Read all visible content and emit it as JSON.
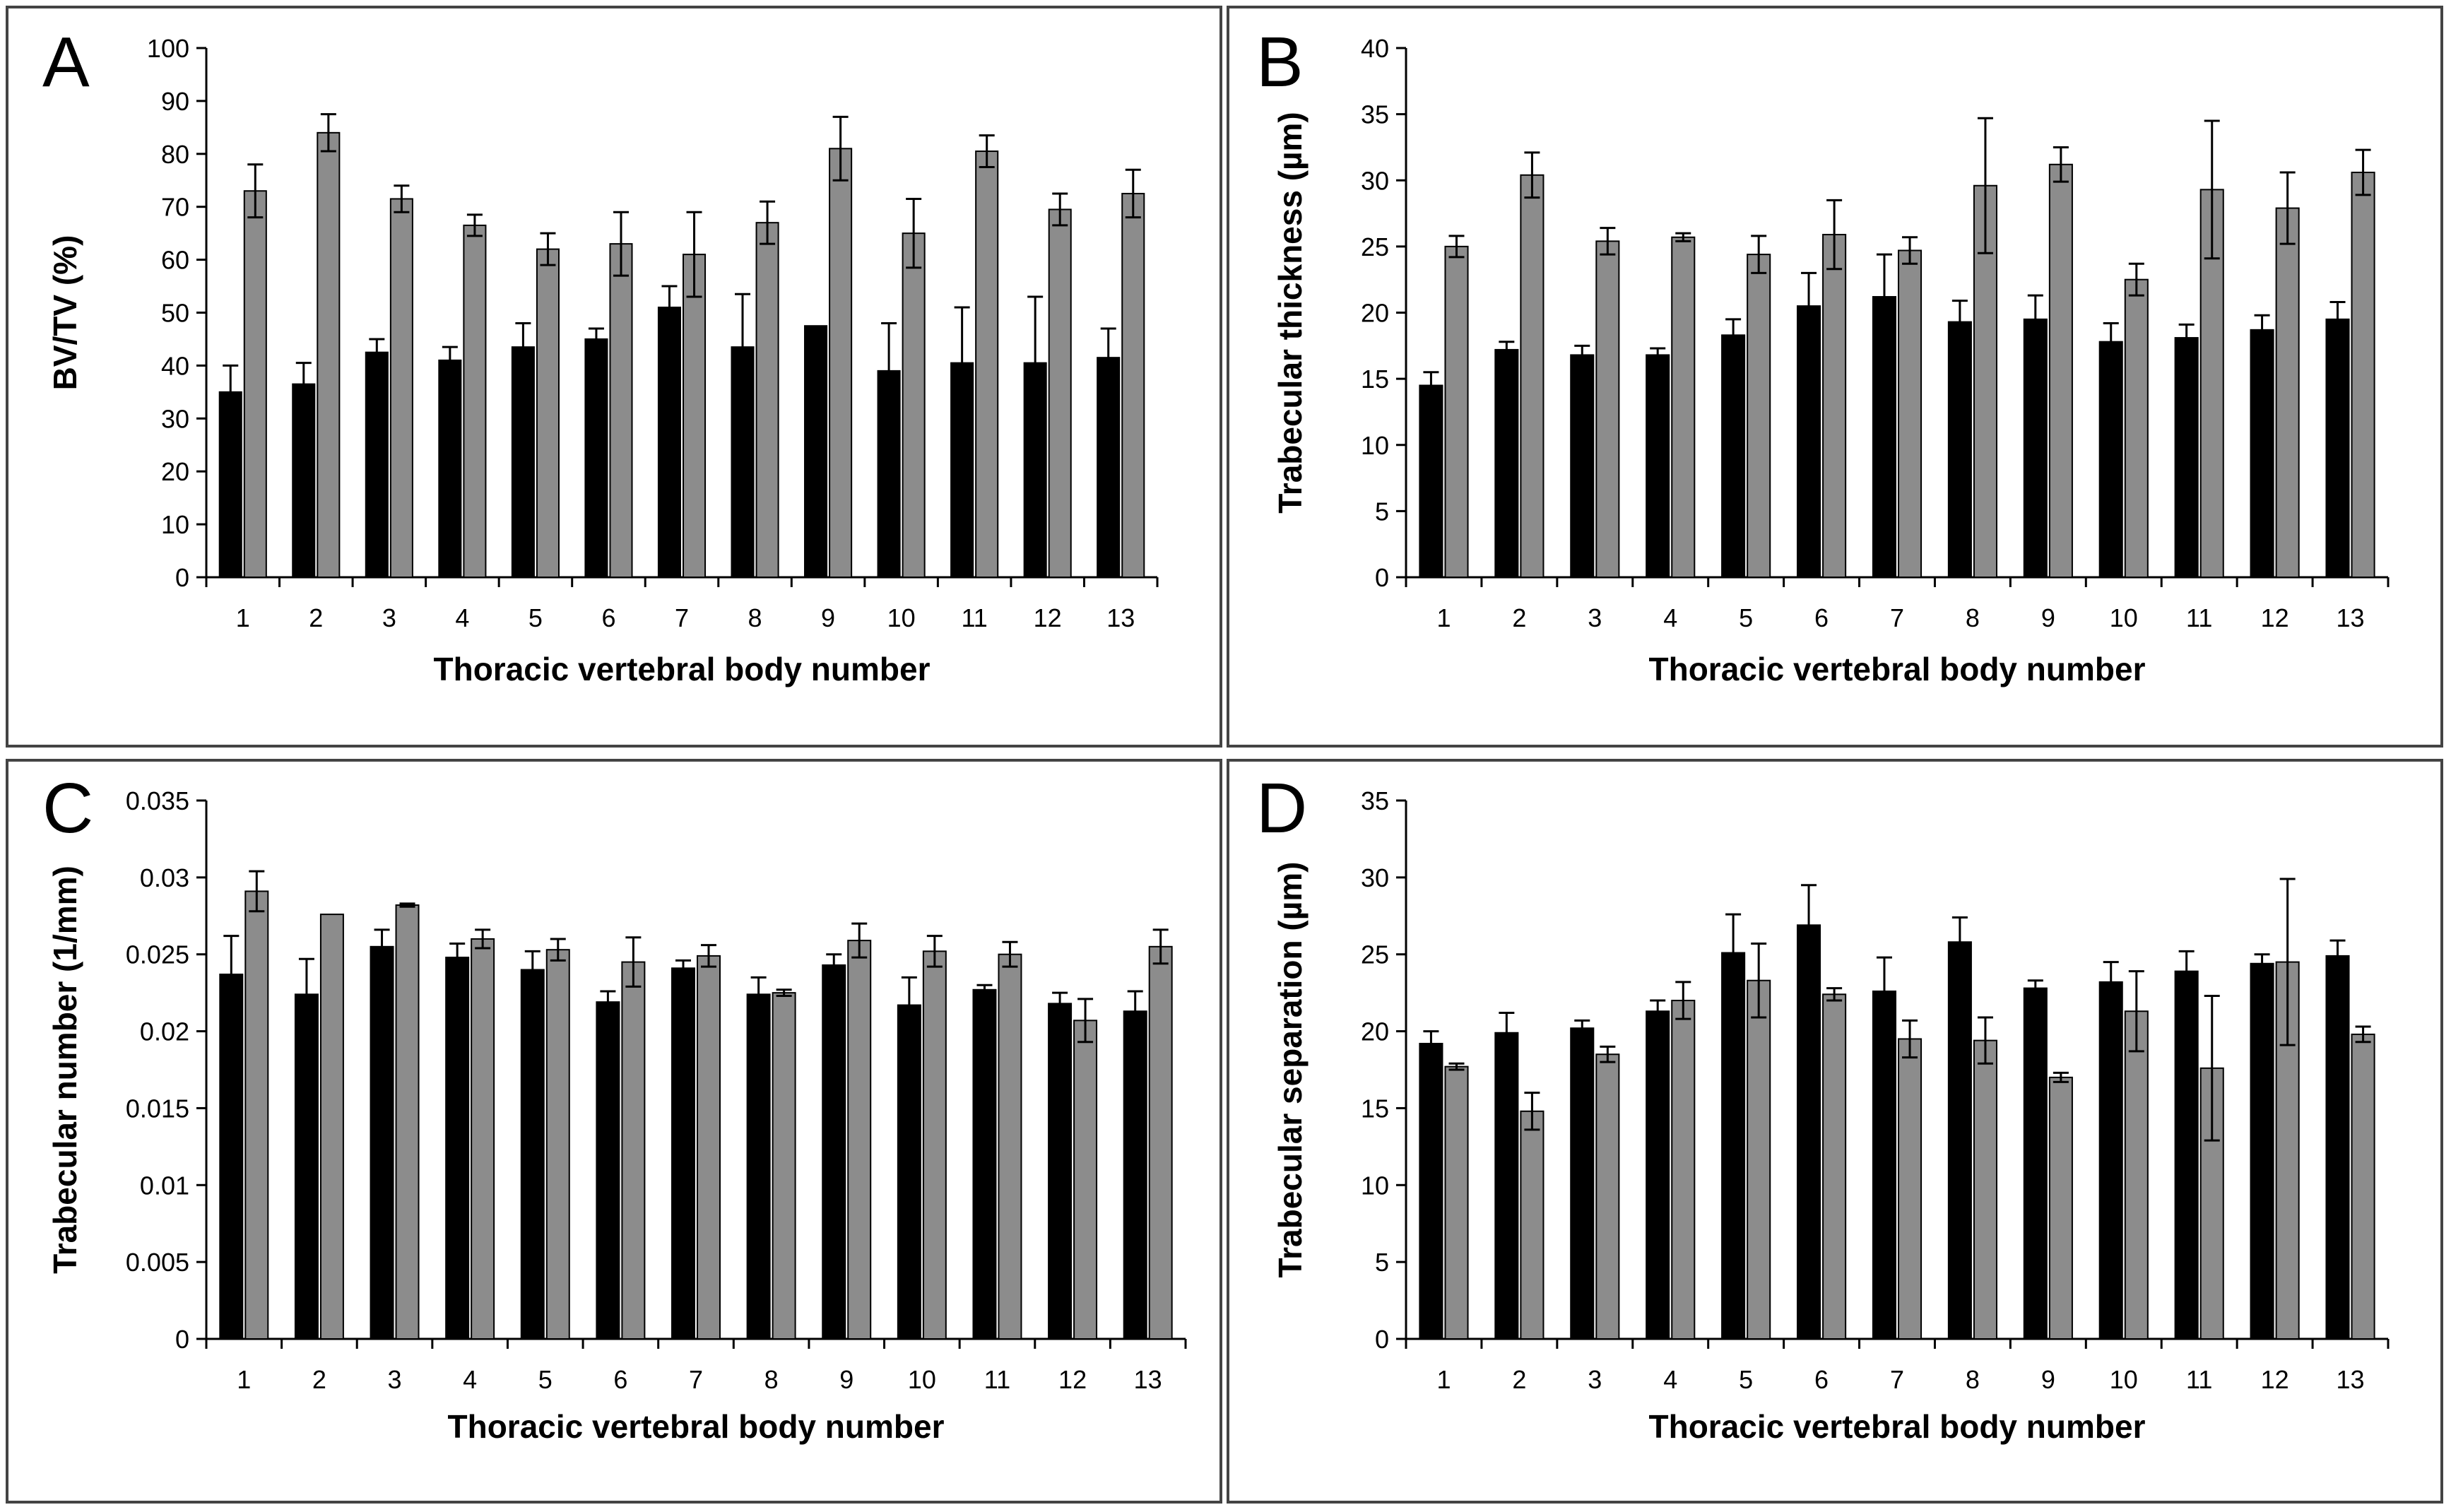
{
  "colors": {
    "series_a": "#000000",
    "series_b": "#8c8c8c",
    "frame": "#444444"
  },
  "chart_data": [
    {
      "type": "bar",
      "panel_label": "A",
      "ylabel": "BV/TV (%)",
      "xlabel": "Thoracic vertebral body number",
      "categories": [
        "1",
        "2",
        "3",
        "4",
        "5",
        "6",
        "7",
        "8",
        "9",
        "10",
        "11",
        "12",
        "13"
      ],
      "ylim": [
        0,
        100
      ],
      "ticks": [
        0,
        10,
        20,
        30,
        40,
        50,
        60,
        70,
        80,
        90,
        100
      ],
      "tick_labels": [
        "0",
        "10",
        "20",
        "30",
        "40",
        "50",
        "60",
        "70",
        "80",
        "90",
        "100"
      ],
      "series": [
        {
          "color": "#000000",
          "values": [
            35,
            36.5,
            42.5,
            41,
            43.5,
            45,
            51,
            43.5,
            47.5,
            39,
            40.5,
            40.5,
            41.5
          ],
          "errors": [
            5,
            4,
            2.5,
            2.5,
            4.5,
            2,
            4,
            10,
            0,
            9,
            10.5,
            12.5,
            5.5
          ]
        },
        {
          "color": "#8c8c8c",
          "values": [
            73,
            84,
            71.5,
            66.5,
            62,
            63,
            61,
            67,
            81,
            65,
            80.5,
            69.5,
            72.5
          ],
          "errors": [
            5,
            3.5,
            2.5,
            2,
            3,
            6,
            8,
            4,
            6,
            6.5,
            3,
            3,
            4.5
          ]
        }
      ],
      "grid": false,
      "legend": "none"
    },
    {
      "type": "bar",
      "panel_label": "B",
      "ylabel": "Trabecular thickness (µm)",
      "xlabel": "Thoracic vertebral body number",
      "categories": [
        "1",
        "2",
        "3",
        "4",
        "5",
        "6",
        "7",
        "8",
        "9",
        "10",
        "11",
        "12",
        "13"
      ],
      "ylim": [
        0,
        40
      ],
      "ticks": [
        0,
        5,
        10,
        15,
        20,
        25,
        30,
        35,
        40
      ],
      "tick_labels": [
        "0",
        "5",
        "10",
        "15",
        "20",
        "25",
        "30",
        "35",
        "40"
      ],
      "series": [
        {
          "color": "#000000",
          "values": [
            14.5,
            17.2,
            16.8,
            16.8,
            18.3,
            20.5,
            21.2,
            19.3,
            19.5,
            17.8,
            18.1,
            18.7,
            19.5
          ],
          "errors": [
            1,
            0.6,
            0.7,
            0.5,
            1.2,
            2.5,
            3.2,
            1.6,
            1.8,
            1.4,
            1,
            1.1,
            1.3
          ]
        },
        {
          "color": "#8c8c8c",
          "values": [
            25,
            30.4,
            25.4,
            25.7,
            24.4,
            25.9,
            24.7,
            29.6,
            31.2,
            22.5,
            29.3,
            27.9,
            30.6
          ],
          "errors": [
            0.8,
            1.7,
            1,
            0.3,
            1.4,
            2.6,
            1,
            5.1,
            1.3,
            1.2,
            5.2,
            2.7,
            1.7
          ]
        }
      ],
      "grid": false,
      "legend": "none"
    },
    {
      "type": "bar",
      "panel_label": "C",
      "ylabel": "Trabecular number (1/mm)",
      "xlabel": "Thoracic vertebral body number",
      "categories": [
        "1",
        "2",
        "3",
        "4",
        "5",
        "6",
        "7",
        "8",
        "9",
        "10",
        "11",
        "12",
        "13"
      ],
      "ylim": [
        0,
        0.035
      ],
      "ticks": [
        0,
        0.005,
        0.01,
        0.015,
        0.02,
        0.025,
        0.03,
        0.035
      ],
      "tick_labels": [
        "0",
        "0.005",
        "0.01",
        "0.015",
        "0.02",
        "0.025",
        "0.03",
        "0.035"
      ],
      "series": [
        {
          "color": "#000000",
          "values": [
            0.0237,
            0.0224,
            0.0255,
            0.0248,
            0.024,
            0.0219,
            0.0241,
            0.0224,
            0.0243,
            0.0217,
            0.0227,
            0.0218,
            0.0213
          ],
          "errors": [
            0.0025,
            0.0023,
            0.0011,
            0.0009,
            0.0012,
            0.0007,
            0.0005,
            0.0011,
            0.0007,
            0.0018,
            0.0003,
            0.0007,
            0.0013
          ]
        },
        {
          "color": "#8c8c8c",
          "values": [
            0.0291,
            0.0276,
            0.0282,
            0.026,
            0.0253,
            0.0245,
            0.0249,
            0.0225,
            0.0259,
            0.0252,
            0.025,
            0.0207,
            0.0255
          ],
          "errors": [
            0.0013,
            0,
            0.0001,
            0.0006,
            0.0007,
            0.0016,
            0.0007,
            0.0002,
            0.0011,
            0.001,
            0.0008,
            0.0014,
            0.0011
          ]
        }
      ],
      "grid": false,
      "legend": "none"
    },
    {
      "type": "bar",
      "panel_label": "D",
      "ylabel": "Trabecular separation (µm)",
      "xlabel": "Thoracic vertebral body number",
      "categories": [
        "1",
        "2",
        "3",
        "4",
        "5",
        "6",
        "7",
        "8",
        "9",
        "10",
        "11",
        "12",
        "13"
      ],
      "ylim": [
        0,
        35
      ],
      "ticks": [
        0,
        5,
        10,
        15,
        20,
        25,
        30,
        35
      ],
      "tick_labels": [
        "0",
        "5",
        "10",
        "15",
        "20",
        "25",
        "30",
        "35"
      ],
      "series": [
        {
          "color": "#000000",
          "values": [
            19.2,
            19.9,
            20.2,
            21.3,
            25.1,
            26.9,
            22.6,
            25.8,
            22.8,
            23.2,
            23.9,
            24.4,
            24.9
          ],
          "errors": [
            0.8,
            1.3,
            0.5,
            0.7,
            2.5,
            2.6,
            2.2,
            1.6,
            0.5,
            1.3,
            1.3,
            0.6,
            1
          ]
        },
        {
          "color": "#8c8c8c",
          "values": [
            17.7,
            14.8,
            18.5,
            22,
            23.3,
            22.4,
            19.5,
            19.4,
            17,
            21.3,
            17.6,
            24.5,
            19.8
          ],
          "errors": [
            0.2,
            1.2,
            0.5,
            1.2,
            2.4,
            0.4,
            1.2,
            1.5,
            0.3,
            2.6,
            4.7,
            5.4,
            0.5
          ]
        }
      ],
      "grid": false,
      "legend": "none"
    }
  ]
}
